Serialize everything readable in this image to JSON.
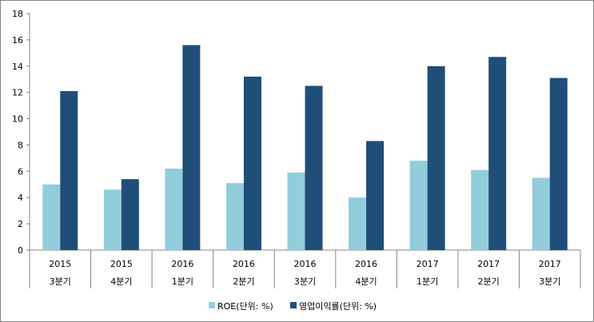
{
  "chart_data": {
    "type": "bar",
    "title": "",
    "xlabel": "",
    "ylabel": "",
    "ylim": [
      0,
      18
    ],
    "yticks": [
      0,
      2,
      4,
      6,
      8,
      10,
      12,
      14,
      16,
      18
    ],
    "grid": false,
    "legend_position": "bottom",
    "categories": [
      {
        "year": "2015",
        "quarter": "3분기"
      },
      {
        "year": "2015",
        "quarter": "4분기"
      },
      {
        "year": "2016",
        "quarter": "1분기"
      },
      {
        "year": "2016",
        "quarter": "2분기"
      },
      {
        "year": "2016",
        "quarter": "3분기"
      },
      {
        "year": "2016",
        "quarter": "4분기"
      },
      {
        "year": "2017",
        "quarter": "1분기"
      },
      {
        "year": "2017",
        "quarter": "2분기"
      },
      {
        "year": "2017",
        "quarter": "3분기"
      }
    ],
    "series": [
      {
        "name": "ROE(단위: %)",
        "color": "#92CDDC",
        "values": [
          5.0,
          4.6,
          6.2,
          5.1,
          5.9,
          4.0,
          6.8,
          6.1,
          5.5
        ]
      },
      {
        "name": "영업이익률(단위: %)",
        "color": "#1F4E79",
        "values": [
          12.1,
          5.4,
          15.6,
          13.2,
          12.5,
          8.3,
          14.0,
          14.7,
          13.1
        ]
      }
    ]
  }
}
